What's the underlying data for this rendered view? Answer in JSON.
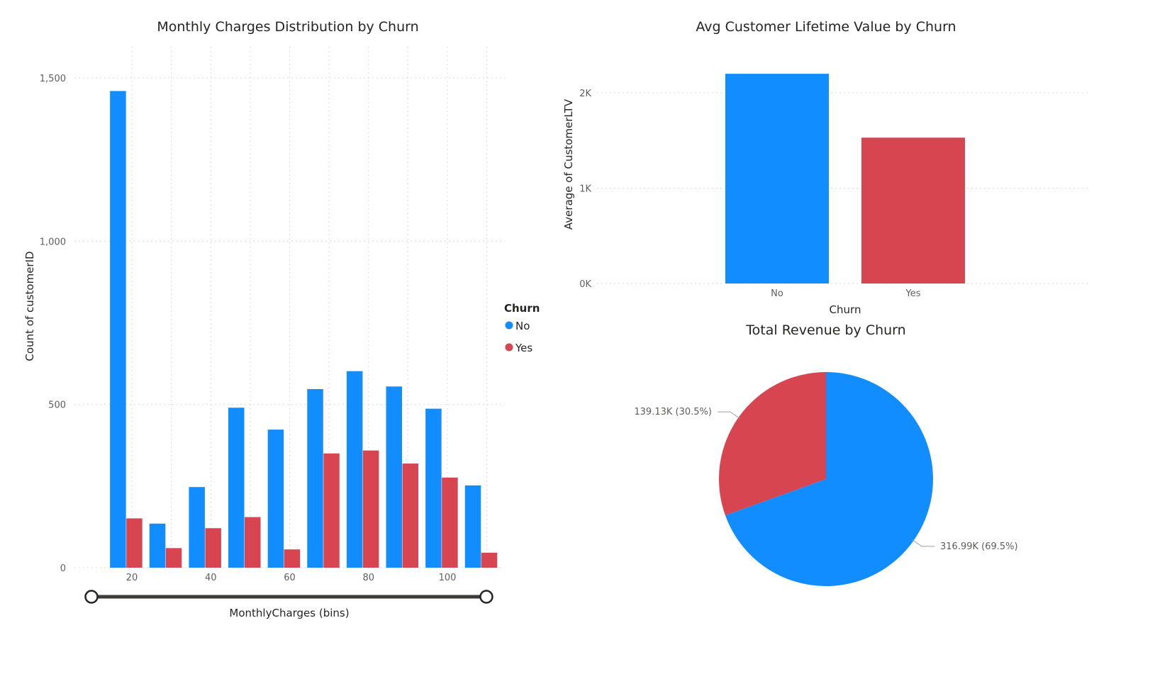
{
  "colors": {
    "no": "#118DFF",
    "yes": "#D64550"
  },
  "chart_data": [
    {
      "type": "bar",
      "title": "Monthly Charges Distribution by Churn",
      "xlabel": "MonthlyCharges (bins)",
      "ylabel": "Count of customerID",
      "x_bins": [
        18.5,
        28.5,
        38.5,
        48.5,
        58.5,
        68.5,
        78.5,
        88.5,
        98.5,
        108.5
      ],
      "xlim": [
        10,
        115
      ],
      "xticks": [
        20,
        40,
        60,
        80,
        100
      ],
      "ylim": [
        0,
        1500
      ],
      "yticks": [
        0,
        500,
        1000,
        1500
      ],
      "ytick_labels": [
        "0",
        "500",
        "1,000",
        "1,500"
      ],
      "grid": true,
      "legend": {
        "title": "Churn",
        "position": "right"
      },
      "series": [
        {
          "name": "No",
          "values": [
            1460,
            135,
            247,
            490,
            423,
            547,
            602,
            555,
            487,
            252
          ]
        },
        {
          "name": "Yes",
          "values": [
            151,
            60,
            121,
            155,
            56,
            350,
            359,
            319,
            276,
            46
          ]
        }
      ]
    },
    {
      "type": "bar",
      "title": "Avg Customer Lifetime Value by Churn",
      "xlabel": "Churn",
      "ylabel": "Average of CustomerLTV",
      "categories": [
        "No",
        "Yes"
      ],
      "values": [
        2200,
        1530
      ],
      "ylim": [
        0,
        2200
      ],
      "yticks": [
        0,
        1000,
        2000
      ],
      "ytick_labels": [
        "0K",
        "1K",
        "2K"
      ],
      "grid": true
    },
    {
      "type": "pie",
      "title": "Total Revenue by Churn",
      "slices": [
        {
          "name": "No",
          "value": 316990,
          "label": "316.99K (69.5%)"
        },
        {
          "name": "Yes",
          "value": 139130,
          "label": "139.13K (30.5%)"
        }
      ]
    }
  ],
  "slider": {
    "min_handle": "range-start",
    "max_handle": "range-end"
  }
}
